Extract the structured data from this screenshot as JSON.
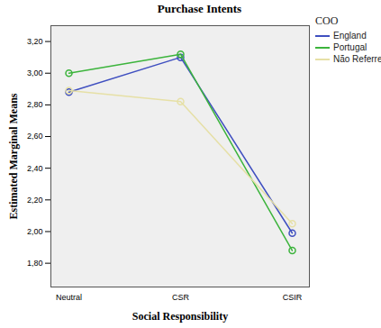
{
  "chart_data": {
    "type": "line",
    "title": "Purchase Intents",
    "x_label": "Social Responsibility",
    "y_label": "Estimated Marginal Means",
    "legend_title": "COO",
    "categories": [
      "Neutral",
      "CSR",
      "CSIR"
    ],
    "series": [
      {
        "name": "England",
        "color": "#3f4fc0",
        "values": [
          2.88,
          3.1,
          1.99
        ]
      },
      {
        "name": "Portugal",
        "color": "#3cb43c",
        "values": [
          3.0,
          3.12,
          1.88
        ]
      },
      {
        "name": "Não Referred",
        "color": "#e6e0a6",
        "values": [
          2.89,
          2.82,
          2.05
        ]
      }
    ],
    "ylim": [
      1.65,
      3.3
    ],
    "yticks": [
      {
        "value": 1.8,
        "label": "1,80"
      },
      {
        "value": 2.0,
        "label": "2,00"
      },
      {
        "value": 2.2,
        "label": "2,20"
      },
      {
        "value": 2.4,
        "label": "2,40"
      },
      {
        "value": 2.6,
        "label": "2,60"
      },
      {
        "value": 2.8,
        "label": "2,80"
      },
      {
        "value": 3.0,
        "label": "3,00"
      },
      {
        "value": 3.2,
        "label": "3,20"
      }
    ],
    "grid": false,
    "legend": "right",
    "marker": "circle"
  }
}
